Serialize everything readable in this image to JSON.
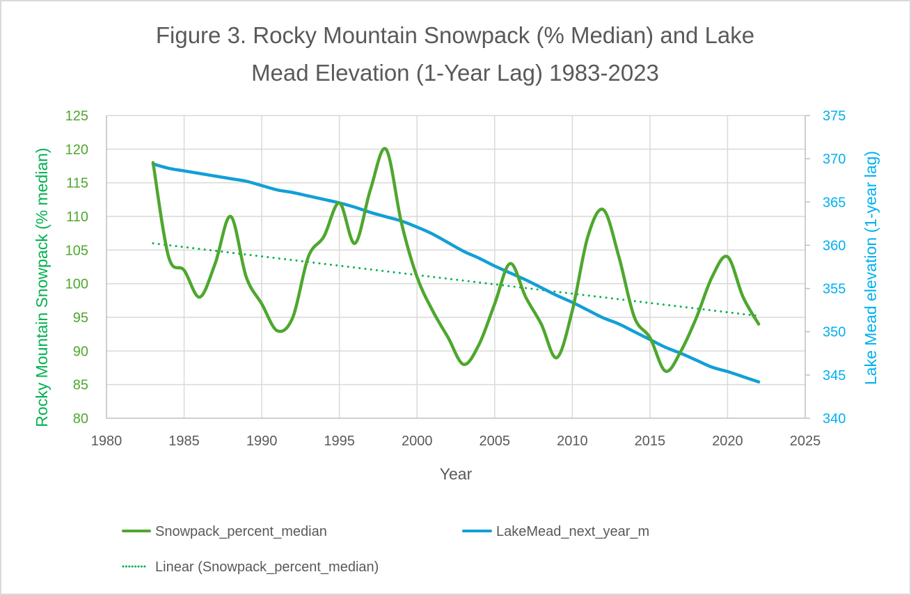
{
  "chart_data": {
    "type": "line",
    "title_lines": [
      "Figure 3. Rocky Mountain Snowpack (% Median) and Lake",
      "Mead Elevation (1-Year Lag) 1983-2023"
    ],
    "xlabel": "Year",
    "ylabel_left": "Rocky Mountain Snowpack  (% median)",
    "ylabel_right": "Lake Mead elevation (1-year lag)",
    "xlim": [
      1980,
      2025
    ],
    "ylim_left": [
      80,
      125
    ],
    "ylim_right": [
      340,
      375
    ],
    "x_ticks": [
      "1980",
      "1985",
      "1990",
      "1995",
      "2000",
      "2005",
      "2010",
      "2015",
      "2020",
      "2025"
    ],
    "y_ticks_left": [
      "80",
      "85",
      "90",
      "95",
      "100",
      "105",
      "110",
      "115",
      "120",
      "125"
    ],
    "y_ticks_right": [
      "340",
      "345",
      "350",
      "355",
      "360",
      "365",
      "370",
      "375"
    ],
    "grid": true,
    "legend_position": "bottom",
    "colors": {
      "snowpack": "#4ea72e",
      "lakemead": "#139fd6",
      "trend": "#00b050",
      "left_axis": "#4ea72e",
      "left_title": "#00b050",
      "right_axis": "#00b0f0",
      "text": "#595959",
      "grid": "#d9d9d9"
    },
    "x": [
      1983,
      1984,
      1985,
      1986,
      1987,
      1988,
      1989,
      1990,
      1991,
      1992,
      1993,
      1994,
      1995,
      1996,
      1997,
      1998,
      1999,
      2000,
      2001,
      2002,
      2003,
      2004,
      2005,
      2006,
      2007,
      2008,
      2009,
      2010,
      2011,
      2012,
      2013,
      2014,
      2015,
      2016,
      2017,
      2018,
      2019,
      2020,
      2021,
      2022
    ],
    "series": [
      {
        "name": "Snowpack_percent_median",
        "axis": "left",
        "style": "solid",
        "values": [
          118,
          104,
          102,
          98,
          103,
          110,
          101,
          97,
          93,
          95,
          104,
          107,
          112,
          106,
          114,
          120,
          109,
          101,
          96,
          92,
          88,
          91,
          97,
          103,
          98,
          94,
          89,
          96,
          107,
          111,
          104,
          95,
          92,
          87,
          90,
          95,
          101,
          104,
          98,
          94
        ]
      },
      {
        "name": "LakeMead_next_year_m",
        "axis": "right",
        "style": "solid",
        "values": [
          369.4,
          368.9,
          368.6,
          368.3,
          368.0,
          367.7,
          367.4,
          366.9,
          366.4,
          366.1,
          365.7,
          365.3,
          364.9,
          364.4,
          363.8,
          363.3,
          362.8,
          362.1,
          361.3,
          360.3,
          359.3,
          358.5,
          357.6,
          356.8,
          356.0,
          355.1,
          354.2,
          353.4,
          352.5,
          351.6,
          350.9,
          350.0,
          349.1,
          348.2,
          347.5,
          346.7,
          345.9,
          345.4,
          344.8,
          344.2
        ]
      },
      {
        "name": "Linear (Snowpack_percent_median)",
        "axis": "left",
        "style": "dotted",
        "trend_of": "Snowpack_percent_median",
        "values_at_ends": [
          106.0,
          95.2
        ]
      }
    ],
    "legend": [
      {
        "label": "Snowpack_percent_median",
        "style": "solid",
        "color_key": "snowpack"
      },
      {
        "label": "LakeMead_next_year_m",
        "style": "solid",
        "color_key": "lakemead"
      },
      {
        "label": "Linear (Snowpack_percent_median)",
        "style": "dotted",
        "color_key": "trend"
      }
    ]
  }
}
